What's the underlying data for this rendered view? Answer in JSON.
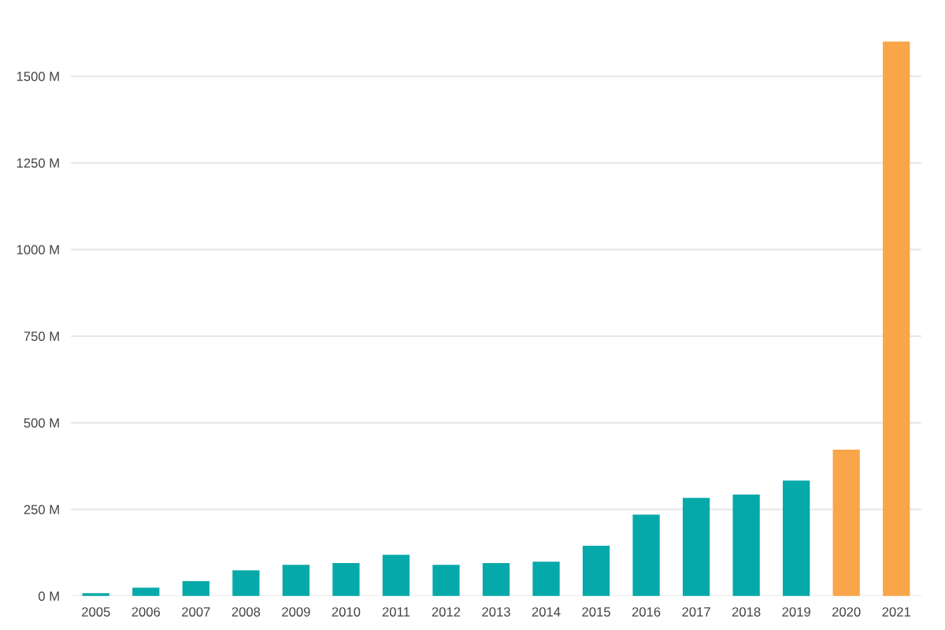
{
  "chart_data": {
    "type": "bar",
    "categories": [
      "2005",
      "2006",
      "2007",
      "2008",
      "2009",
      "2010",
      "2011",
      "2012",
      "2013",
      "2014",
      "2015",
      "2016",
      "2017",
      "2018",
      "2019",
      "2020",
      "2021"
    ],
    "values": [
      8,
      24,
      43,
      74,
      90,
      95,
      119,
      90,
      95,
      99,
      145,
      235,
      283,
      293,
      333,
      422,
      1600
    ],
    "colors": [
      "#06a9a9",
      "#06a9a9",
      "#06a9a9",
      "#06a9a9",
      "#06a9a9",
      "#06a9a9",
      "#06a9a9",
      "#06a9a9",
      "#06a9a9",
      "#06a9a9",
      "#06a9a9",
      "#06a9a9",
      "#06a9a9",
      "#06a9a9",
      "#06a9a9",
      "#f9a64a",
      "#f9a64a"
    ],
    "ylim": [
      0,
      1600
    ],
    "yticks": [
      {
        "value": 0,
        "label": "0 M"
      },
      {
        "value": 250,
        "label": "250 M"
      },
      {
        "value": 500,
        "label": "500 M"
      },
      {
        "value": 750,
        "label": "750 M"
      },
      {
        "value": 1000,
        "label": "1000 M"
      },
      {
        "value": 1250,
        "label": "1250 M"
      },
      {
        "value": 1500,
        "label": "1500 M"
      }
    ],
    "grid": "y",
    "legend": false
  }
}
